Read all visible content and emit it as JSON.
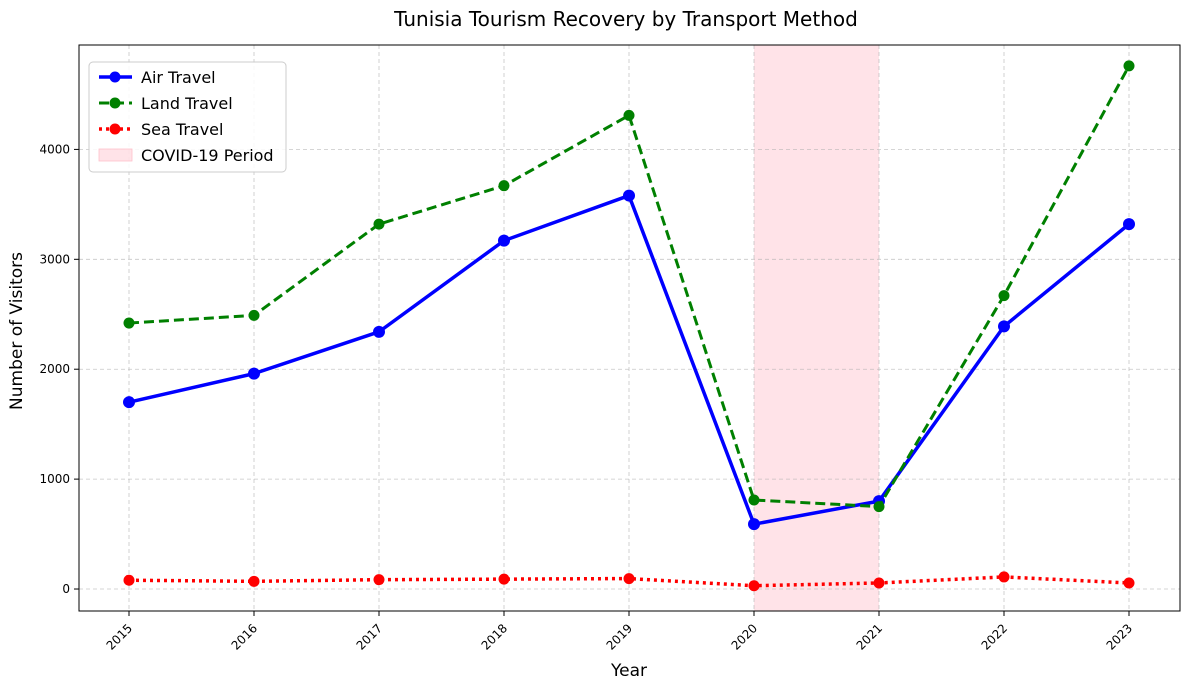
{
  "chart_data": {
    "type": "line",
    "title": "Tunisia Tourism Recovery by Transport Method",
    "xlabel": "Year",
    "ylabel": "Number of Visitors",
    "categories": [
      "2015",
      "2016",
      "2017",
      "2018",
      "2019",
      "2020",
      "2021",
      "2022",
      "2023"
    ],
    "yticks": [
      "0",
      "1000",
      "2000",
      "3000",
      "4000"
    ],
    "ylim": [
      -200,
      4950
    ],
    "grid": true,
    "legend_position": "top-left",
    "series": [
      {
        "name": "Air Travel",
        "color": "#0000ff",
        "style": "solid",
        "values": [
          1700,
          1960,
          2340,
          3170,
          3580,
          590,
          800,
          2390,
          3320
        ]
      },
      {
        "name": "Land Travel",
        "color": "#008000",
        "style": "dashed",
        "values": [
          2420,
          2490,
          3320,
          3670,
          4310,
          810,
          750,
          2670,
          4760
        ]
      },
      {
        "name": "Sea Travel",
        "color": "#ff0000",
        "style": "dotted",
        "values": [
          80,
          70,
          85,
          90,
          95,
          30,
          55,
          110,
          55
        ]
      }
    ],
    "shaded_region": {
      "label": "COVID-19 Period",
      "from": "2020",
      "to": "2021",
      "color": "#ffc0cb"
    }
  }
}
